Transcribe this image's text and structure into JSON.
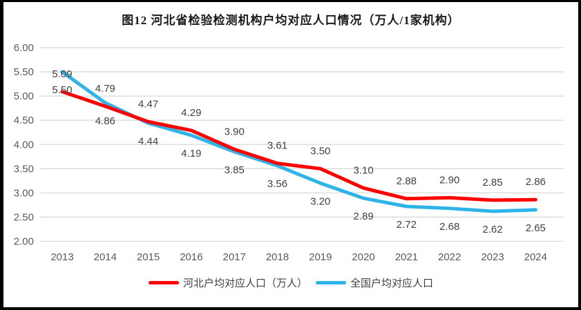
{
  "title": "图12  河北省检验检测机构户均对应人口情况（万人/1家机构）",
  "frame": {
    "border_color": "#000000",
    "background_color": "#ffffff"
  },
  "chart_data": {
    "type": "line",
    "categories": [
      "2013",
      "2014",
      "2015",
      "2016",
      "2017",
      "2018",
      "2019",
      "2020",
      "2021",
      "2022",
      "2023",
      "2024"
    ],
    "series": [
      {
        "name": "河北户均对应人口（万人）",
        "color": "#FF0000",
        "values": [
          5.09,
          4.79,
          4.47,
          4.29,
          3.9,
          3.61,
          3.5,
          3.1,
          2.88,
          2.9,
          2.85,
          2.86
        ],
        "label_position": "above"
      },
      {
        "name": "全国户均对应人口",
        "color": "#2FB4E9",
        "values": [
          5.5,
          4.86,
          4.44,
          4.19,
          3.85,
          3.56,
          3.2,
          2.89,
          2.72,
          2.68,
          2.62,
          2.65
        ],
        "label_position": "below"
      }
    ],
    "ylim": [
      2.0,
      6.0
    ],
    "ytick_step": 0.5,
    "ytick_labels": [
      "6.00",
      "5.50",
      "5.00",
      "4.50",
      "4.00",
      "3.50",
      "3.00",
      "2.50",
      "2.00"
    ],
    "grid": true,
    "legend_position": "bottom",
    "colors": {
      "gridline": "#D9D9D9",
      "axis_label": "#595959",
      "data_label": "#404040",
      "title": "#1a1a1a"
    }
  }
}
